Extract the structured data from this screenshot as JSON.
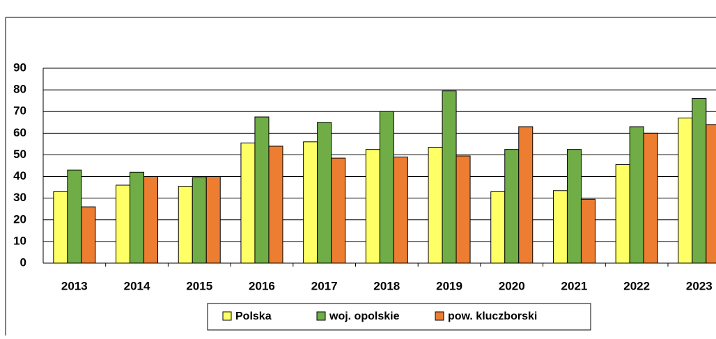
{
  "chart_data": {
    "type": "bar",
    "categories": [
      "2013",
      "2014",
      "2015",
      "2016",
      "2017",
      "2018",
      "2019",
      "2020",
      "2021",
      "2022",
      "2023"
    ],
    "series": [
      {
        "name": "Polska",
        "color": "#ffff66",
        "values": [
          33,
          36,
          35.5,
          55.5,
          56,
          52.5,
          53.5,
          33,
          33.5,
          45.5,
          67
        ]
      },
      {
        "name": "woj. opolskie",
        "color": "#70ad47",
        "values": [
          43,
          42,
          39.5,
          67.5,
          65,
          70,
          79.5,
          52.5,
          52.5,
          63,
          76
        ]
      },
      {
        "name": "pow. kluczborski",
        "color": "#ed7d31",
        "values": [
          26,
          40,
          40,
          54,
          48.5,
          49,
          49.5,
          63,
          29.5,
          60,
          64
        ]
      }
    ],
    "ylim": [
      0,
      90
    ],
    "yticks": [
      0,
      10,
      20,
      30,
      40,
      50,
      60,
      70,
      80,
      90
    ],
    "grid": true,
    "legend": "bottom"
  }
}
